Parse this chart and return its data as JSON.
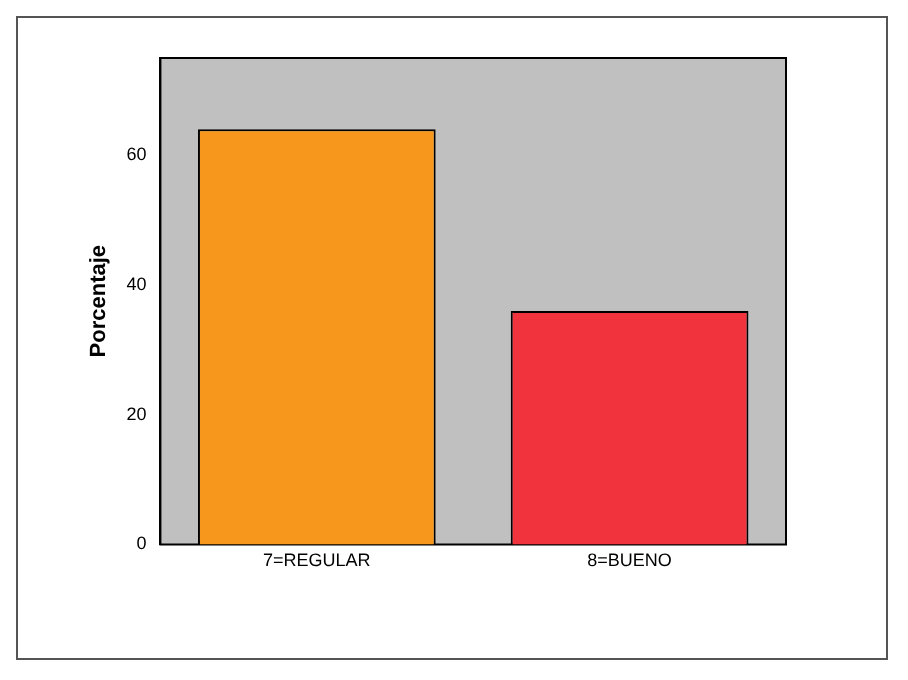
{
  "chart_data": {
    "type": "bar",
    "ylabel": "Porcentaje",
    "categories": [
      "7=REGULAR",
      "8=BUENO"
    ],
    "values": [
      64,
      36
    ],
    "colors": [
      "#f7981d",
      "#f0333d"
    ],
    "ylim": [
      0,
      75
    ],
    "yticks": [
      0,
      20,
      40,
      60
    ],
    "grid": false,
    "legend": false
  }
}
